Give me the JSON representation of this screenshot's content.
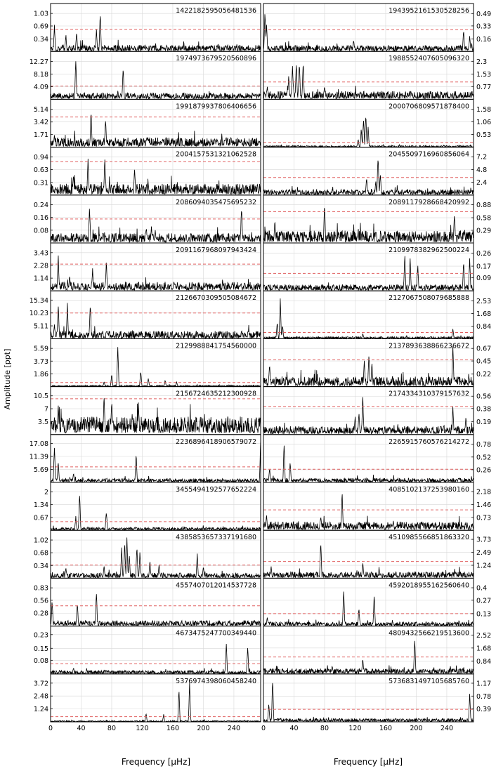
{
  "figure": {
    "ylabel": "Amplitude [ppt]",
    "xlabel_left": "Frequency [μHz]",
    "xlabel_right": "Frequency [μHz]",
    "threshold_color": "#e06060",
    "line_color": "#000000",
    "grid_color": "#d8d8d8"
  },
  "chart_data": [
    {
      "type": "line",
      "column": "left",
      "row": 0,
      "id": "1422182595056481536",
      "xlim": [
        0,
        275
      ],
      "yticks": [
        0.34,
        0.69,
        1.03
      ],
      "ymax": 1.3,
      "threshold": 0.6,
      "noise": 0.1,
      "peaks": [
        [
          5,
          0.78
        ],
        [
          65,
          1.18
        ],
        [
          60,
          0.62
        ],
        [
          34,
          0.58
        ],
        [
          20,
          0.5
        ]
      ]
    },
    {
      "type": "line",
      "column": "right",
      "row": 0,
      "id": "1943952161530528256",
      "xlim": [
        0,
        275
      ],
      "yticks": [
        0.16,
        0.33,
        0.49
      ],
      "ymax": 0.62,
      "threshold": 0.28,
      "noise": 0.045,
      "peaks": [
        [
          2,
          0.58
        ],
        [
          4,
          0.4
        ],
        [
          118,
          0.17
        ],
        [
          262,
          0.3
        ],
        [
          270,
          0.22
        ]
      ]
    },
    {
      "type": "line",
      "column": "left",
      "row": 1,
      "id": "1974973679520560896",
      "xlim": [
        0,
        275
      ],
      "yticks": [
        4.09,
        8.18,
        12.27
      ],
      "ymax": 15.5,
      "threshold": 4.3,
      "noise": 1.2,
      "peaks": [
        [
          33,
          13.5
        ],
        [
          95,
          11.1
        ]
      ]
    },
    {
      "type": "line",
      "column": "right",
      "row": 1,
      "id": "1988552407605096320",
      "xlim": [
        0,
        275
      ],
      "yticks": [
        0.77,
        1.53,
        2.3
      ],
      "ymax": 2.9,
      "threshold": 1.05,
      "noise": 0.28,
      "peaks": [
        [
          5,
          0.9
        ],
        [
          38,
          2.3
        ],
        [
          43,
          2.5
        ],
        [
          47,
          2.6
        ],
        [
          52,
          2.55
        ],
        [
          33,
          1.5
        ],
        [
          80,
          0.9
        ]
      ]
    },
    {
      "type": "line",
      "column": "left",
      "row": 2,
      "id": "1991879937806406656",
      "xlim": [
        0,
        275
      ],
      "yticks": [
        1.71,
        3.42,
        5.14
      ],
      "ymax": 6.5,
      "threshold": 4.1,
      "noise": 0.75,
      "peaks": [
        [
          53,
          5.4
        ],
        [
          72,
          4.2
        ],
        [
          5,
          1.8
        ]
      ]
    },
    {
      "type": "line",
      "column": "right",
      "row": 2,
      "id": "2000706809571878400",
      "xlim": [
        0,
        275
      ],
      "yticks": [
        0.53,
        1.06,
        1.58
      ],
      "ymax": 2.0,
      "threshold": 0.2,
      "noise": 0.04,
      "peaks": [
        [
          128,
          0.8
        ],
        [
          131,
          1.35
        ],
        [
          134,
          1.55
        ],
        [
          137,
          0.9
        ],
        [
          124,
          0.35
        ]
      ]
    },
    {
      "type": "line",
      "column": "left",
      "row": 3,
      "id": "2004157531321062528",
      "xlim": [
        0,
        275
      ],
      "yticks": [
        0.31,
        0.63,
        0.94
      ],
      "ymax": 1.18,
      "threshold": 0.82,
      "noise": 0.16,
      "peaks": [
        [
          49,
          0.92
        ],
        [
          71,
          1.0
        ],
        [
          110,
          0.72
        ],
        [
          30,
          0.55
        ]
      ]
    },
    {
      "type": "line",
      "column": "right",
      "row": 3,
      "id": "2045509716960856064",
      "xlim": [
        0,
        275
      ],
      "yticks": [
        2.4,
        4.8,
        7.2
      ],
      "ymax": 9.0,
      "threshold": 3.3,
      "noise": 0.6,
      "peaks": [
        [
          135,
          3.6
        ],
        [
          150,
          8.2
        ],
        [
          153,
          4.4
        ],
        [
          147,
          2.8
        ],
        [
          90,
          1.2
        ]
      ]
    },
    {
      "type": "line",
      "column": "left",
      "row": 4,
      "id": "2086094035475695232",
      "xlim": [
        0,
        275
      ],
      "yticks": [
        0.08,
        0.16,
        0.24
      ],
      "ymax": 0.3,
      "threshold": 0.15,
      "noise": 0.035,
      "peaks": [
        [
          51,
          0.25
        ],
        [
          125,
          0.1
        ],
        [
          132,
          0.11
        ],
        [
          137,
          0.09
        ],
        [
          250,
          0.26
        ]
      ]
    },
    {
      "type": "line",
      "column": "right",
      "row": 4,
      "id": "2089117928668420992",
      "xlim": [
        0,
        275
      ],
      "yticks": [
        0.29,
        0.58,
        0.88
      ],
      "ymax": 1.1,
      "threshold": 0.72,
      "noise": 0.16,
      "peaks": [
        [
          80,
          0.98
        ],
        [
          250,
          0.72
        ],
        [
          15,
          0.58
        ]
      ]
    },
    {
      "type": "line",
      "column": "left",
      "row": 5,
      "id": "2091167968097943424",
      "xlim": [
        0,
        275
      ],
      "yticks": [
        1.14,
        2.28,
        3.43
      ],
      "ymax": 4.3,
      "threshold": 2.4,
      "noise": 0.45,
      "peaks": [
        [
          10,
          3.5
        ],
        [
          55,
          2.1
        ],
        [
          73,
          2.85
        ],
        [
          25,
          1.5
        ]
      ]
    },
    {
      "type": "line",
      "column": "right",
      "row": 5,
      "id": "2109978382962500224",
      "xlim": [
        0,
        275
      ],
      "yticks": [
        0.09,
        0.17,
        0.26
      ],
      "ymax": 0.33,
      "threshold": 0.12,
      "noise": 0.025,
      "peaks": [
        [
          185,
          0.28
        ],
        [
          192,
          0.25
        ],
        [
          202,
          0.2
        ],
        [
          262,
          0.22
        ],
        [
          270,
          0.24
        ]
      ]
    },
    {
      "type": "line",
      "column": "left",
      "row": 6,
      "id": "2126670309505084672",
      "xlim": [
        0,
        275
      ],
      "yticks": [
        5.11,
        10.23,
        15.34
      ],
      "ymax": 19,
      "threshold": 10.2,
      "noise": 1.8,
      "peaks": [
        [
          10,
          15.5
        ],
        [
          22,
          14.5
        ],
        [
          52,
          16.2
        ],
        [
          5,
          6.5
        ]
      ]
    },
    {
      "type": "line",
      "column": "right",
      "row": 6,
      "id": "2127067508079685888",
      "xlim": [
        0,
        275
      ],
      "yticks": [
        0.84,
        1.68,
        2.53
      ],
      "ymax": 3.2,
      "threshold": 0.42,
      "noise": 0.08,
      "peaks": [
        [
          22,
          2.8
        ],
        [
          18,
          1.2
        ],
        [
          25,
          1.0
        ],
        [
          130,
          0.38
        ],
        [
          248,
          0.72
        ]
      ]
    },
    {
      "type": "line",
      "column": "left",
      "row": 7,
      "id": "2129988841754560000",
      "xlim": [
        0,
        275
      ],
      "yticks": [
        1.86,
        3.73,
        5.59
      ],
      "ymax": 7.0,
      "threshold": 0.6,
      "noise": 0.12,
      "peaks": [
        [
          88,
          6.3
        ],
        [
          80,
          2.0
        ],
        [
          118,
          2.6
        ],
        [
          128,
          1.3
        ],
        [
          150,
          1.0
        ],
        [
          165,
          0.7
        ],
        [
          70,
          0.8
        ]
      ]
    },
    {
      "type": "line",
      "column": "right",
      "row": 7,
      "id": "2137893638866236672",
      "xlim": [
        0,
        275
      ],
      "yticks": [
        0.22,
        0.45,
        0.67
      ],
      "ymax": 0.84,
      "threshold": 0.47,
      "noise": 0.1,
      "peaks": [
        [
          138,
          0.62
        ],
        [
          132,
          0.5
        ],
        [
          142,
          0.45
        ],
        [
          8,
          0.45
        ],
        [
          248,
          0.78
        ]
      ]
    },
    {
      "type": "line",
      "column": "left",
      "row": 8,
      "id": "2156724635212300928",
      "xlim": [
        0,
        275
      ],
      "yticks": [
        3.5,
        7.0,
        10.5
      ],
      "ymax": 13,
      "threshold": 9.7,
      "noise": 2.8,
      "peaks": [
        [
          70,
          11.5
        ],
        [
          80,
          10.2
        ],
        [
          10,
          8.5
        ],
        [
          115,
          9.0
        ]
      ]
    },
    {
      "type": "line",
      "column": "right",
      "row": 8,
      "id": "2174334310379157632",
      "xlim": [
        0,
        275
      ],
      "yticks": [
        0.19,
        0.38,
        0.56
      ],
      "ymax": 0.7,
      "threshold": 0.41,
      "noise": 0.07,
      "peaks": [
        [
          130,
          0.62
        ],
        [
          125,
          0.35
        ],
        [
          120,
          0.28
        ],
        [
          248,
          0.45
        ],
        [
          265,
          0.28
        ]
      ]
    },
    {
      "type": "line",
      "column": "left",
      "row": 9,
      "id": "2236896418906579072",
      "xlim": [
        0,
        275
      ],
      "yticks": [
        5.69,
        11.39,
        17.08
      ],
      "ymax": 21,
      "threshold": 6.8,
      "noise": 1.0,
      "peaks": [
        [
          5,
          18
        ],
        [
          10,
          10
        ],
        [
          112,
          14
        ],
        [
          275,
          20
        ],
        [
          30,
          4.5
        ]
      ]
    },
    {
      "type": "line",
      "column": "right",
      "row": 9,
      "id": "2265915760576214272",
      "xlim": [
        0,
        275
      ],
      "yticks": [
        0.26,
        0.52,
        0.78
      ],
      "ymax": 0.98,
      "threshold": 0.27,
      "noise": 0.05,
      "peaks": [
        [
          27,
          0.85
        ],
        [
          35,
          0.45
        ],
        [
          8,
          0.32
        ]
      ]
    },
    {
      "type": "line",
      "column": "left",
      "row": 10,
      "id": "3455494192577652224",
      "xlim": [
        0,
        275
      ],
      "yticks": [
        0.67,
        1.34,
        2.0
      ],
      "ymax": 2.5,
      "threshold": 0.45,
      "noise": 0.09,
      "peaks": [
        [
          38,
          2.1
        ],
        [
          33,
          0.75
        ],
        [
          73,
          1.1
        ]
      ]
    },
    {
      "type": "line",
      "column": "right",
      "row": 10,
      "id": "4085102137253980160",
      "xlim": [
        0,
        275
      ],
      "yticks": [
        0.73,
        1.46,
        2.18
      ],
      "ymax": 2.7,
      "threshold": 1.15,
      "noise": 0.28,
      "peaks": [
        [
          103,
          2.3
        ],
        [
          75,
          0.9
        ],
        [
          4,
          0.95
        ],
        [
          170,
          0.55
        ]
      ]
    },
    {
      "type": "line",
      "column": "left",
      "row": 11,
      "id": "4385853657337191680",
      "xlim": [
        0,
        275
      ],
      "yticks": [
        0.34,
        0.68,
        1.02
      ],
      "ymax": 1.28,
      "threshold": 0.35,
      "noise": 0.08,
      "peaks": [
        [
          93,
          0.85
        ],
        [
          97,
          1.0
        ],
        [
          100,
          1.15
        ],
        [
          103,
          0.7
        ],
        [
          113,
          0.95
        ],
        [
          117,
          0.75
        ],
        [
          130,
          0.5
        ],
        [
          142,
          0.4
        ],
        [
          192,
          0.68
        ],
        [
          200,
          0.35
        ],
        [
          20,
          0.32
        ],
        [
          70,
          0.35
        ]
      ]
    },
    {
      "type": "line",
      "column": "right",
      "row": 11,
      "id": "4510985566851863320",
      "xlim": [
        0,
        275
      ],
      "yticks": [
        1.24,
        2.49,
        3.73
      ],
      "ymax": 4.6,
      "threshold": 1.6,
      "noise": 0.35,
      "peaks": [
        [
          75,
          4.0
        ],
        [
          130,
          1.7
        ],
        [
          10,
          1.2
        ]
      ]
    },
    {
      "type": "line",
      "column": "left",
      "row": 12,
      "id": "4557407012014537728",
      "xlim": [
        0,
        275
      ],
      "yticks": [
        0.28,
        0.56,
        0.83
      ],
      "ymax": 1.04,
      "threshold": 0.44,
      "noise": 0.07,
      "peaks": [
        [
          60,
          0.82
        ],
        [
          35,
          0.56
        ],
        [
          2,
          0.6
        ]
      ]
    },
    {
      "type": "line",
      "column": "right",
      "row": 12,
      "id": "4592018955162560640",
      "xlim": [
        0,
        275
      ],
      "yticks": [
        0.13,
        0.27,
        0.4
      ],
      "ymax": 0.5,
      "threshold": 0.13,
      "noise": 0.025,
      "peaks": [
        [
          105,
          0.42
        ],
        [
          125,
          0.2
        ],
        [
          145,
          0.37
        ],
        [
          5,
          0.1
        ]
      ]
    },
    {
      "type": "line",
      "column": "left",
      "row": 13,
      "id": "4673475247700349440",
      "xlim": [
        0,
        275
      ],
      "yticks": [
        0.08,
        0.15,
        0.23
      ],
      "ymax": 0.28,
      "threshold": 0.06,
      "noise": 0.012,
      "peaks": [
        [
          230,
          0.2
        ],
        [
          258,
          0.18
        ],
        [
          30,
          0.04
        ]
      ]
    },
    {
      "type": "line",
      "column": "right",
      "row": 13,
      "id": "4809432566219513600",
      "xlim": [
        0,
        275
      ],
      "yticks": [
        0.84,
        1.68,
        2.52
      ],
      "ymax": 3.1,
      "threshold": 1.1,
      "noise": 0.2,
      "peaks": [
        [
          198,
          2.5
        ],
        [
          130,
          1.1
        ],
        [
          90,
          0.6
        ]
      ]
    },
    {
      "type": "line",
      "column": "left",
      "row": 14,
      "id": "5376974398060458240",
      "xlim": [
        0,
        275
      ],
      "yticks": [
        1.24,
        2.48,
        3.72
      ],
      "ymax": 4.6,
      "threshold": 0.5,
      "noise": 0.07,
      "peaks": [
        [
          168,
          3.3
        ],
        [
          182,
          4.0
        ],
        [
          125,
          0.9
        ],
        [
          148,
          0.75
        ]
      ]
    },
    {
      "type": "line",
      "column": "right",
      "row": 14,
      "id": "5736831497105685760",
      "xlim": [
        0,
        275
      ],
      "yticks": [
        0.39,
        0.78,
        1.17
      ],
      "ymax": 1.45,
      "threshold": 0.38,
      "noise": 0.06,
      "peaks": [
        [
          12,
          1.4
        ],
        [
          7,
          0.6
        ],
        [
          270,
          0.9
        ]
      ]
    }
  ],
  "axes": {
    "xticks_left": [
      "0",
      "40",
      "80",
      "120",
      "160",
      "200",
      "240"
    ],
    "xticks_right": [
      "0",
      "40",
      "80",
      "120",
      "160",
      "200",
      "240"
    ],
    "xtick_values": [
      0,
      40,
      80,
      120,
      160,
      200,
      240
    ]
  }
}
